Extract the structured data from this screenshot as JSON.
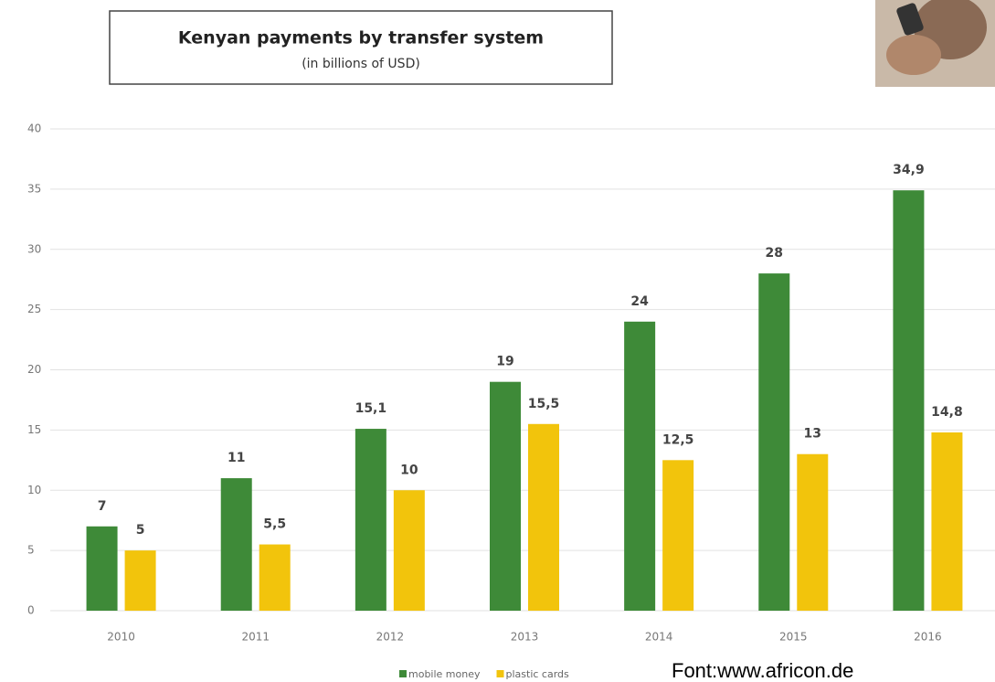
{
  "chart_data": {
    "type": "bar",
    "title": "Kenyan payments by transfer system",
    "subtitle": "(in billions of USD)",
    "categories": [
      "2010",
      "2011",
      "2012",
      "2013",
      "2014",
      "2015",
      "2016"
    ],
    "series": [
      {
        "name": "mobile money",
        "color": "#3e8a38",
        "values": [
          7,
          11,
          15.1,
          19,
          24,
          28,
          34.9
        ],
        "value_labels": [
          "7",
          "11",
          "15,1",
          "19",
          "24",
          "28",
          "34,9"
        ]
      },
      {
        "name": "plastic cards",
        "color": "#f2c40c",
        "values": [
          5,
          5.5,
          10,
          15.5,
          12.5,
          13,
          14.8
        ],
        "value_labels": [
          "5",
          "5,5",
          "10",
          "15,5",
          "12,5",
          "13",
          "14,8"
        ]
      }
    ],
    "ylim": [
      0,
      40
    ],
    "yticks": [
      0,
      5,
      10,
      15,
      20,
      25,
      30,
      35,
      40
    ],
    "grid": true,
    "source": "Font:www.africon.de"
  }
}
